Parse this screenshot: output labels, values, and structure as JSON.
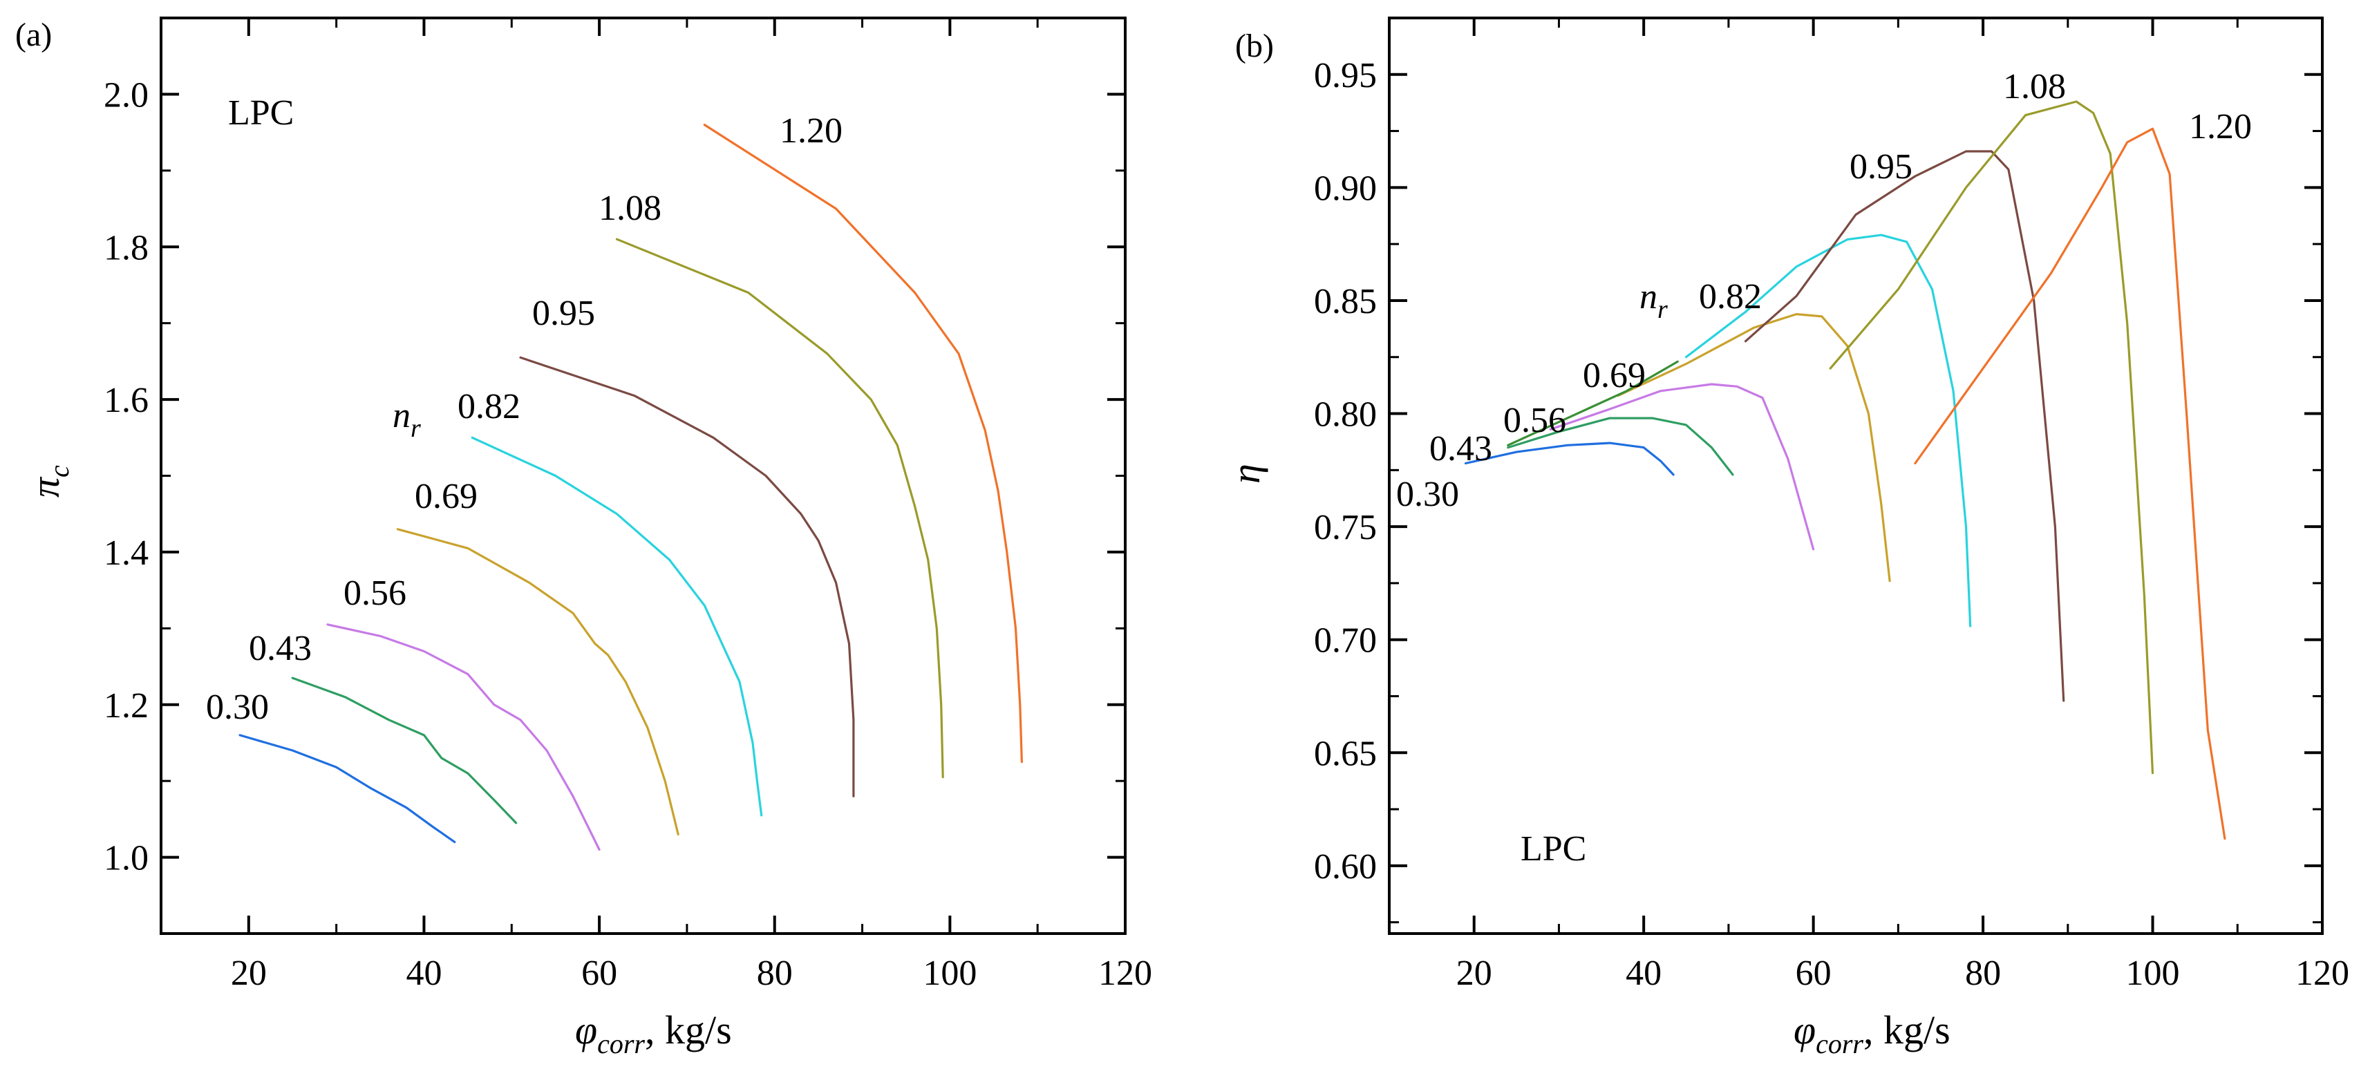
{
  "chart_data": [
    {
      "type": "line",
      "panel": "(a)",
      "annotation": "LPC",
      "speed_symbol": "n",
      "speed_symbol_sub": "r",
      "xlabel_main": "φ",
      "xlabel_sub": "corr",
      "xlabel_unit": ", kg/s",
      "ylabel_main": "π",
      "ylabel_sub": "c",
      "xlim": [
        10,
        120
      ],
      "ylim": [
        0.9,
        2.1
      ],
      "xticks": [
        20,
        40,
        60,
        80,
        100,
        120
      ],
      "xtick_labels": [
        "20",
        "40",
        "60",
        "80",
        "100",
        "120"
      ],
      "yticks": [
        1.0,
        1.2,
        1.4,
        1.6,
        1.8,
        2.0
      ],
      "ytick_labels": [
        "1.0",
        "1.2",
        "1.4",
        "1.6",
        "1.8",
        "2.0"
      ],
      "series": [
        {
          "name": "0.30",
          "color": "#1f6fe0",
          "x": [
            19,
            25,
            30,
            34,
            38,
            41,
            43.5
          ],
          "y": [
            1.16,
            1.14,
            1.118,
            1.09,
            1.065,
            1.04,
            1.02
          ]
        },
        {
          "name": "0.43",
          "color": "#2e9e62",
          "x": [
            25,
            31,
            36,
            40,
            42,
            45,
            48,
            50.5
          ],
          "y": [
            1.235,
            1.21,
            1.18,
            1.16,
            1.13,
            1.11,
            1.075,
            1.045
          ]
        },
        {
          "name": "0.56",
          "color": "#c77ae6",
          "x": [
            29,
            35,
            40,
            45,
            48,
            51,
            54,
            57,
            60
          ],
          "y": [
            1.305,
            1.29,
            1.27,
            1.24,
            1.2,
            1.18,
            1.14,
            1.08,
            1.01
          ]
        },
        {
          "name": "0.69",
          "color": "#c9a22c",
          "x": [
            37,
            45,
            52,
            57,
            59.5,
            61,
            63,
            65.5,
            67.5,
            69
          ],
          "y": [
            1.43,
            1.405,
            1.36,
            1.32,
            1.28,
            1.265,
            1.23,
            1.17,
            1.1,
            1.03
          ]
        },
        {
          "name": "0.82",
          "color": "#29d3de",
          "x": [
            45.5,
            55,
            62,
            68,
            72,
            74,
            76,
            77.5,
            78,
            78.5
          ],
          "y": [
            1.55,
            1.5,
            1.45,
            1.39,
            1.33,
            1.28,
            1.23,
            1.15,
            1.1,
            1.055
          ]
        },
        {
          "name": "0.95",
          "color": "#7b4a43",
          "x": [
            51,
            64,
            73,
            79,
            83,
            85,
            87,
            88.5,
            89,
            89
          ],
          "y": [
            1.655,
            1.605,
            1.55,
            1.5,
            1.45,
            1.415,
            1.36,
            1.28,
            1.18,
            1.08
          ]
        },
        {
          "name": "1.08",
          "color": "#9a9b2b",
          "x": [
            62,
            77,
            86,
            91,
            94,
            96,
            97.5,
            98.5,
            99,
            99.2
          ],
          "y": [
            1.81,
            1.74,
            1.66,
            1.6,
            1.54,
            1.46,
            1.39,
            1.3,
            1.2,
            1.105
          ]
        },
        {
          "name": "1.20",
          "color": "#f0722a",
          "x": [
            72,
            87,
            96,
            101,
            104,
            105.5,
            106.5,
            107.5,
            108,
            108.2
          ],
          "y": [
            1.96,
            1.85,
            1.74,
            1.66,
            1.56,
            1.48,
            1.4,
            1.3,
            1.2,
            1.125
          ]
        }
      ]
    },
    {
      "type": "line",
      "panel": "(b)",
      "annotation": "LPC",
      "speed_symbol": "n",
      "speed_symbol_sub": "r",
      "xlabel_main": "φ",
      "xlabel_sub": "corr",
      "xlabel_unit": ", kg/s",
      "ylabel_main": "η",
      "xlim": [
        10,
        120
      ],
      "ylim": [
        0.57,
        0.975
      ],
      "xticks": [
        20,
        40,
        60,
        80,
        100,
        120
      ],
      "xtick_labels": [
        "20",
        "40",
        "60",
        "80",
        "100",
        "120"
      ],
      "yticks": [
        0.6,
        0.65,
        0.7,
        0.75,
        0.8,
        0.85,
        0.9,
        0.95
      ],
      "ytick_labels": [
        "0.60",
        "0.65",
        "0.70",
        "0.75",
        "0.80",
        "0.85",
        "0.90",
        "0.95"
      ],
      "series": [
        {
          "name": "0.30",
          "color": "#1f6fe0",
          "x": [
            19,
            25,
            31,
            36,
            40,
            42,
            43.5
          ],
          "y": [
            0.778,
            0.783,
            0.786,
            0.787,
            0.785,
            0.779,
            0.773
          ]
        },
        {
          "name": "0.43",
          "color": "#2e9e62",
          "x": [
            24,
            30,
            36,
            41,
            45,
            48,
            50.5
          ],
          "y": [
            0.785,
            0.792,
            0.798,
            0.798,
            0.795,
            0.785,
            0.773
          ]
        },
        {
          "name": "0.56",
          "color": "#c77ae6",
          "x": [
            29,
            36,
            42,
            48,
            51,
            54,
            57,
            60
          ],
          "y": [
            0.793,
            0.802,
            0.81,
            0.813,
            0.812,
            0.807,
            0.78,
            0.74
          ]
        },
        {
          "name": "0.69",
          "color": "#c9a22c",
          "x": [
            37,
            45,
            53,
            58,
            61,
            64,
            66.5,
            68,
            69
          ],
          "y": [
            0.808,
            0.822,
            0.838,
            0.844,
            0.843,
            0.83,
            0.8,
            0.76,
            0.726
          ]
        },
        {
          "name": "0.82",
          "color": "#29d3de",
          "x": [
            45,
            52,
            58,
            64,
            68,
            71,
            74,
            76.5,
            78,
            78.5
          ],
          "y": [
            0.825,
            0.845,
            0.865,
            0.877,
            0.879,
            0.876,
            0.855,
            0.81,
            0.75,
            0.706
          ]
        },
        {
          "name": "0.95",
          "color": "#7b4a43",
          "x": [
            52,
            58,
            65,
            72,
            78,
            81,
            83,
            86,
            88.5,
            89.5
          ],
          "y": [
            0.832,
            0.852,
            0.888,
            0.905,
            0.916,
            0.916,
            0.908,
            0.85,
            0.75,
            0.673
          ]
        },
        {
          "name": "1.08",
          "color": "#9a9b2b",
          "x": [
            62,
            70,
            78,
            85,
            91,
            93,
            95,
            97,
            99,
            100
          ],
          "y": [
            0.82,
            0.855,
            0.9,
            0.932,
            0.938,
            0.933,
            0.915,
            0.84,
            0.72,
            0.641
          ]
        },
        {
          "name": "1.20",
          "color": "#f0722a",
          "x": [
            72,
            80,
            88,
            94,
            97,
            100,
            102,
            104,
            106.5,
            108.5
          ],
          "y": [
            0.778,
            0.82,
            0.862,
            0.9,
            0.92,
            0.926,
            0.906,
            0.8,
            0.66,
            0.612
          ]
        },
        {
          "name": "",
          "color": "#3a8f36",
          "x": [
            24,
            38,
            44
          ],
          "y": [
            0.786,
            0.81,
            0.823
          ]
        }
      ]
    }
  ]
}
